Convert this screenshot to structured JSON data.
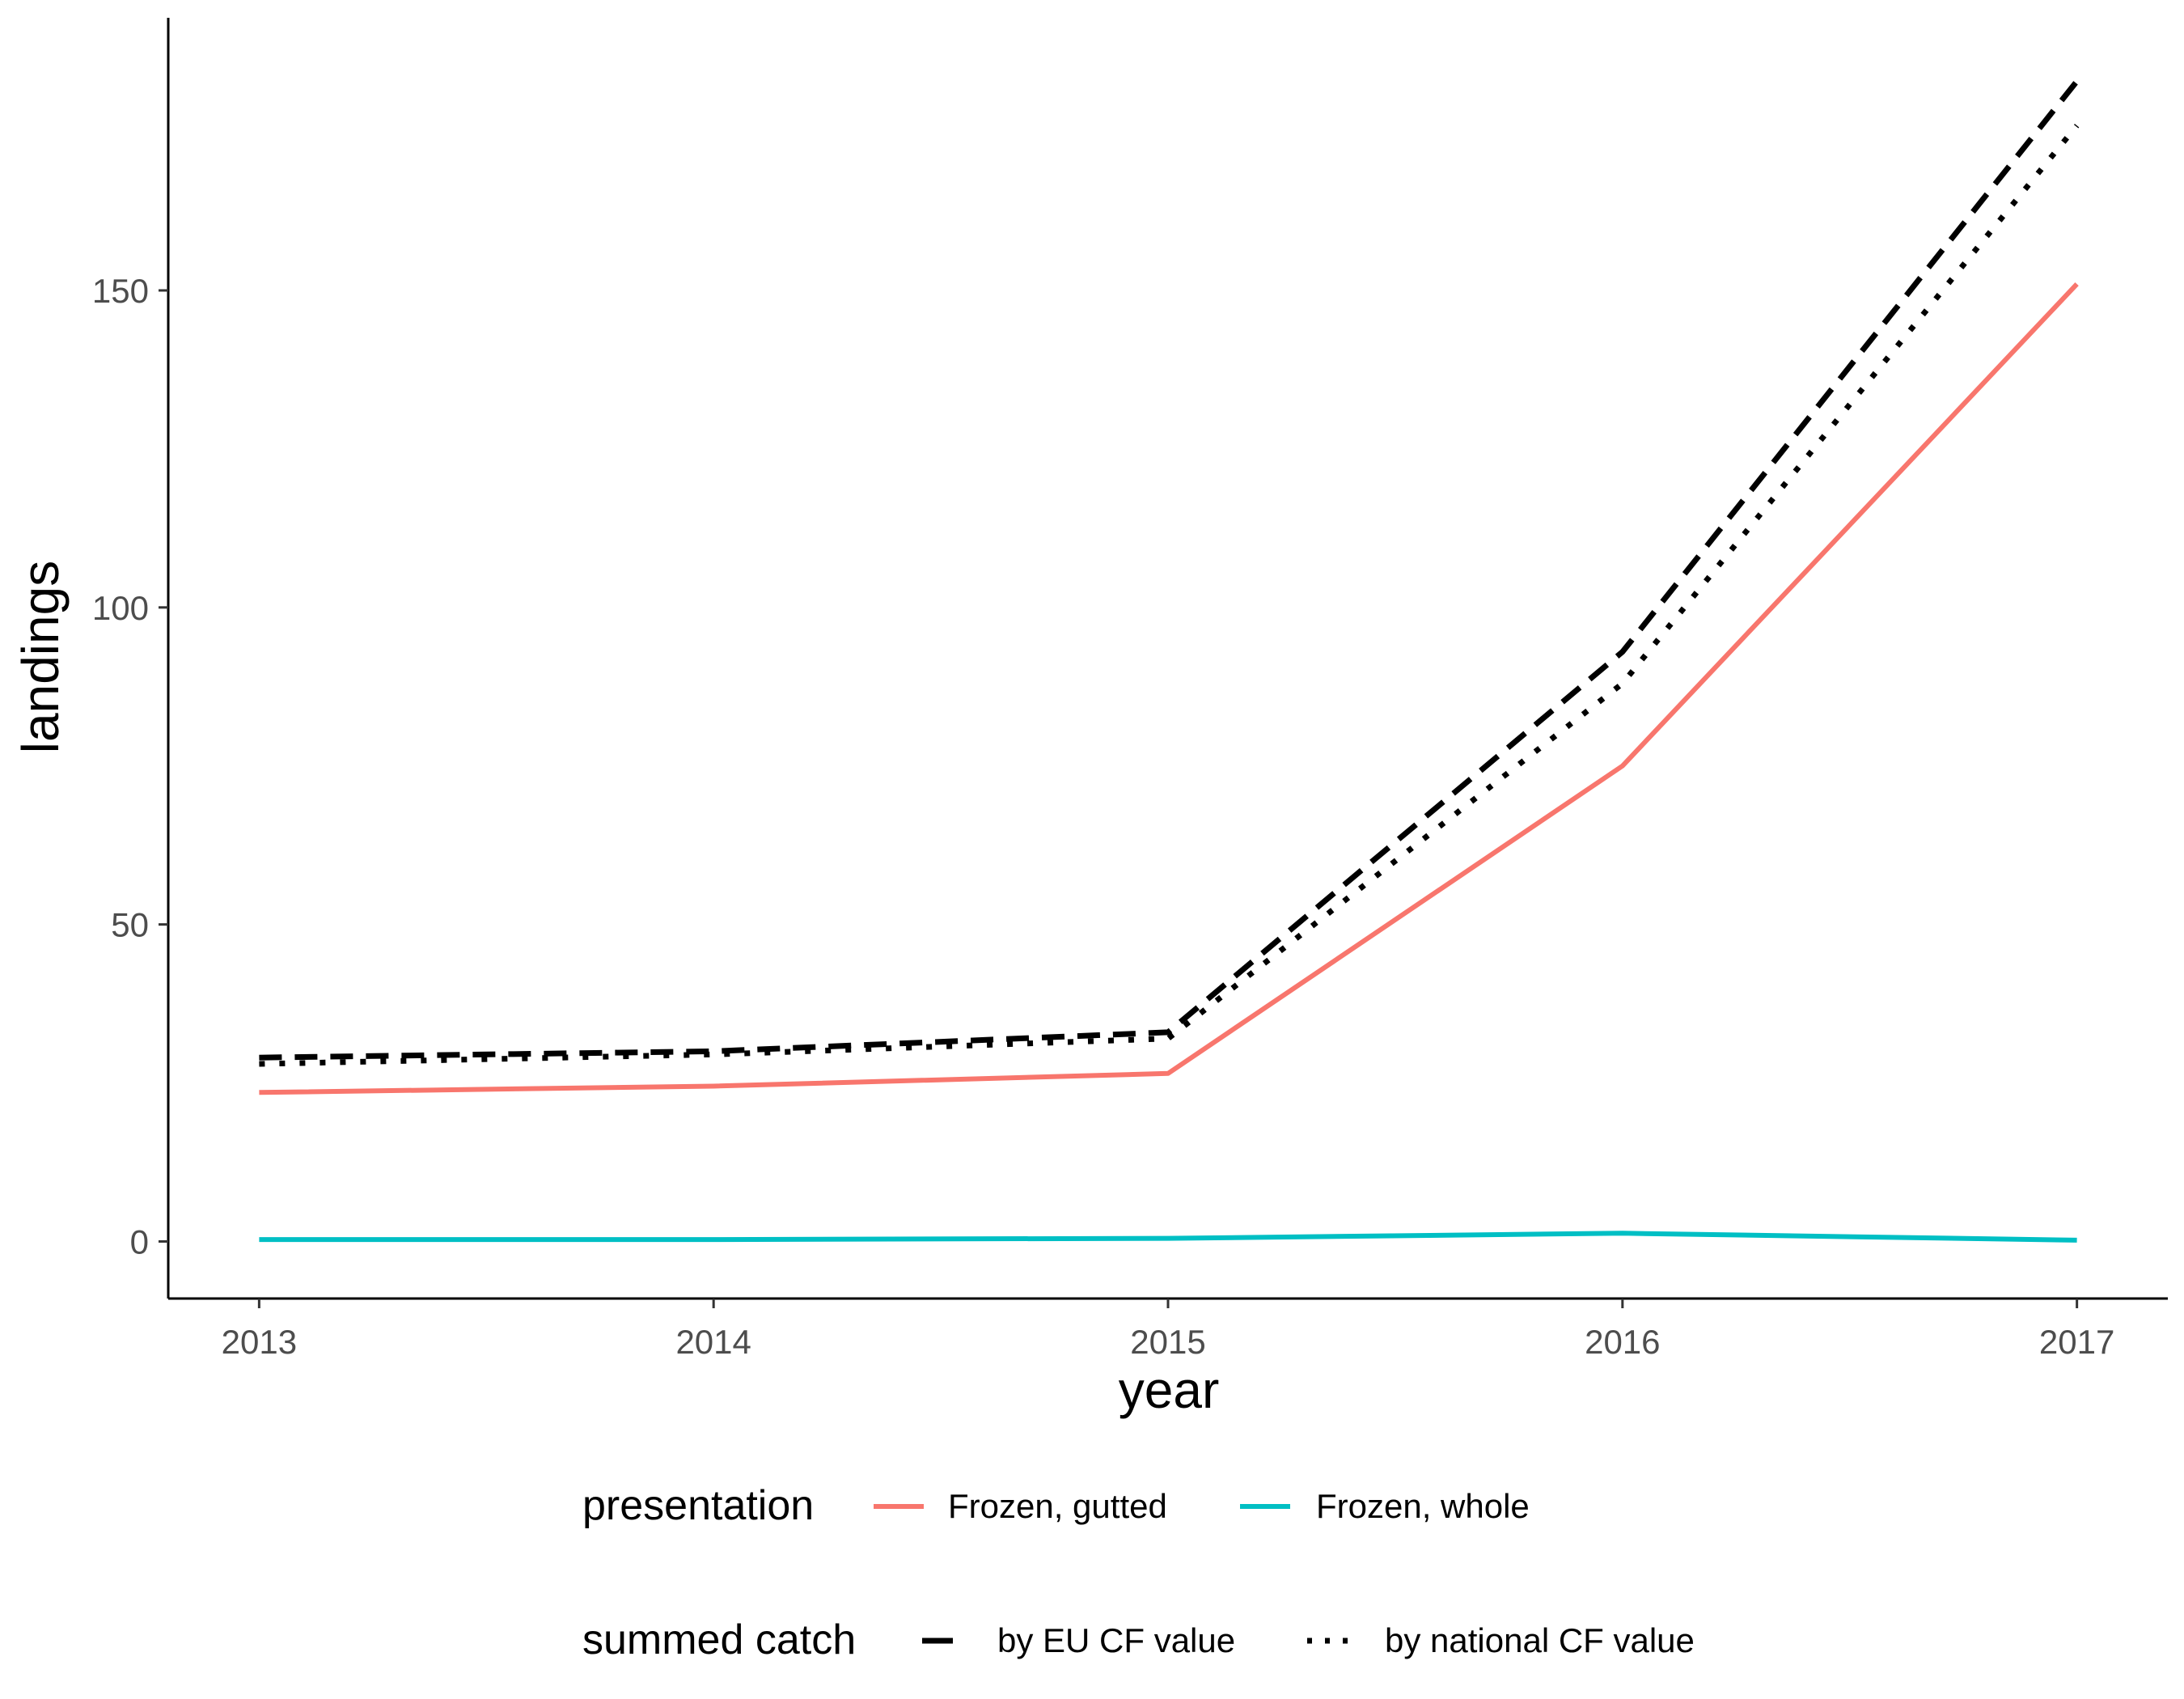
{
  "chart_data": {
    "type": "line",
    "xlabel": "year",
    "ylabel": "landings",
    "x": [
      2013,
      2014,
      2015,
      2016,
      2017
    ],
    "x_tick_labels": [
      "2013",
      "2014",
      "2015",
      "2016",
      "2017"
    ],
    "xlim": [
      2012.8,
      2017.2
    ],
    "y_ticks": [
      0,
      50,
      100,
      150
    ],
    "y_tick_labels": [
      "0",
      "50",
      "100",
      "150"
    ],
    "ylim": [
      -9,
      193
    ],
    "grid": false,
    "legend_placement": "bottom",
    "series": [
      {
        "name": "Frozen, gutted",
        "legend": "presentation",
        "color": "#F8766D",
        "linetype": "solid",
        "values": [
          23.5,
          24.5,
          26.5,
          75,
          151
        ]
      },
      {
        "name": "Frozen, whole",
        "legend": "presentation",
        "color": "#00BFC4",
        "linetype": "solid",
        "values": [
          0.3,
          0.3,
          0.5,
          1.3,
          0.2
        ]
      },
      {
        "name": "by EU CF value",
        "legend": "summed catch",
        "color": "#000000",
        "linetype": "dashed",
        "values": [
          29,
          30,
          33,
          93,
          183
        ]
      },
      {
        "name": "by national CF value",
        "legend": "summed catch",
        "color": "#000000",
        "linetype": "dotted",
        "values": [
          28,
          29.5,
          32,
          88,
          176
        ]
      }
    ],
    "legends": [
      {
        "title": "presentation",
        "entries": [
          "Frozen, gutted",
          "Frozen, whole"
        ]
      },
      {
        "title": "summed catch",
        "entries": [
          "by EU CF value",
          "by national CF value"
        ]
      }
    ]
  }
}
